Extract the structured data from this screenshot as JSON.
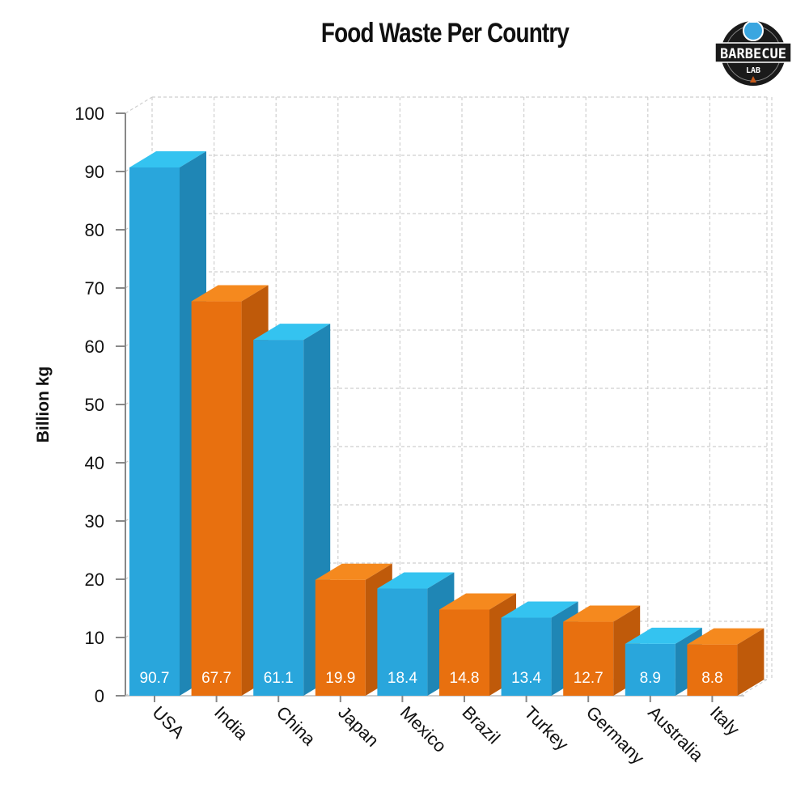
{
  "chart_data": {
    "type": "bar",
    "title": "Food Waste Per Country",
    "ylabel": "Billion kg",
    "xlabel": "",
    "ylim": [
      0,
      100
    ],
    "yticks": [
      "0",
      "10",
      "20",
      "30",
      "40",
      "50",
      "60",
      "70",
      "80",
      "90",
      "100"
    ],
    "grid": true,
    "style": "3d",
    "categories": [
      "USA",
      "India",
      "China",
      "Japan",
      "Mexico",
      "Brazil",
      "Turkey",
      "Germany",
      "Australia",
      "Italy"
    ],
    "values": [
      90.7,
      67.7,
      61.1,
      19.9,
      18.4,
      14.8,
      13.4,
      12.7,
      8.9,
      8.8
    ],
    "data_labels": [
      "90.7",
      "67.7",
      "61.1",
      "19.9",
      "18.4",
      "14.8",
      "13.4",
      "12.7",
      "8.9",
      "8.8"
    ],
    "colors": [
      "#29a6dc",
      "#e8700f"
    ]
  },
  "logo": {
    "text": "THE BARBECUE LAB"
  }
}
